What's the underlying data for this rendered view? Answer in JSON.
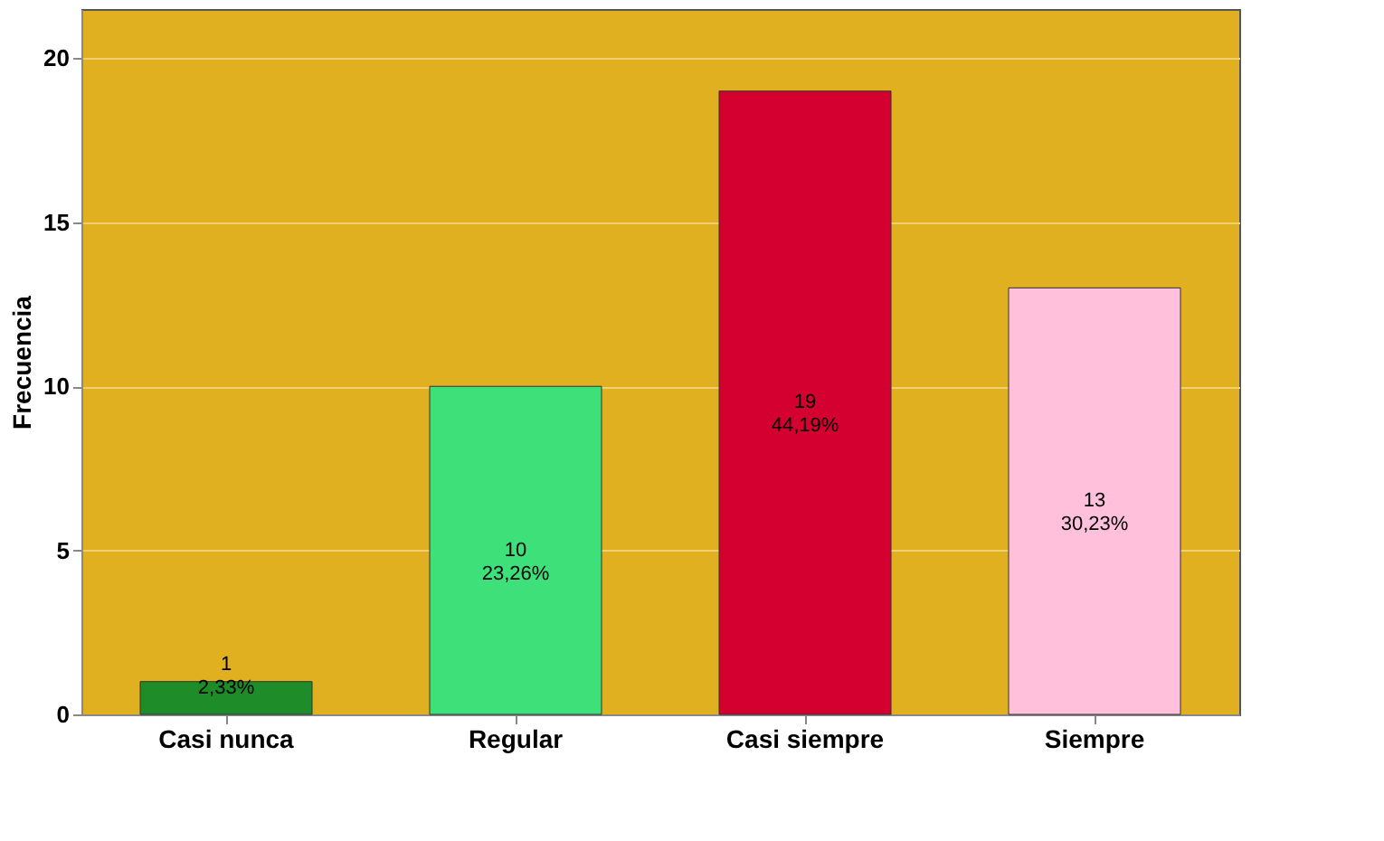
{
  "chart_data": {
    "type": "bar",
    "ylabel": "Frecuencia",
    "categories": [
      "Casi nunca",
      "Regular",
      "Casi siempre",
      "Siempre"
    ],
    "values": [
      1,
      10,
      19,
      13
    ],
    "colors": [
      "#1e8c28",
      "#3ee07a",
      "#d4002f",
      "#ffc0dc"
    ],
    "value_labels": [
      "1\n2,33%",
      "10\n23,26%",
      "19\n44,19%",
      "13\n30,23%"
    ],
    "ylim": [
      0,
      21.5
    ],
    "yticks": [
      0,
      5,
      10,
      15,
      20
    ],
    "grid": "y"
  }
}
